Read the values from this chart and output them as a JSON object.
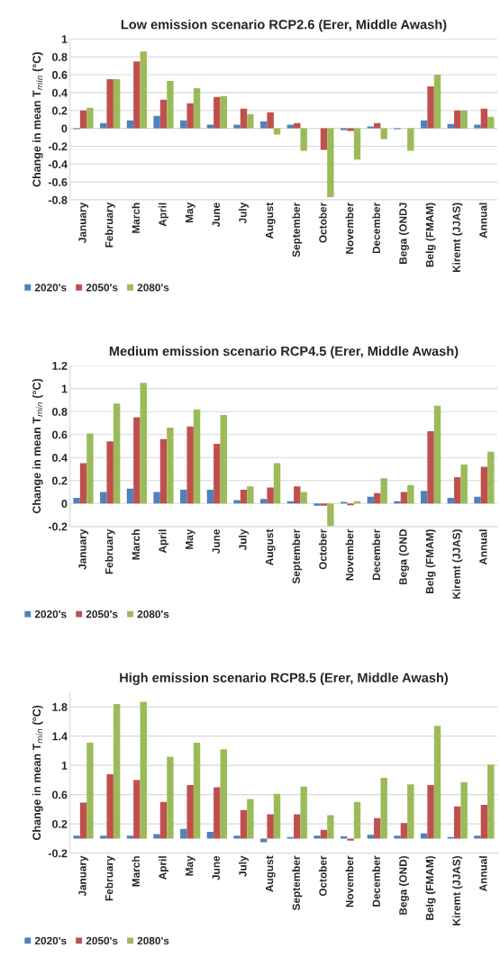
{
  "chart_data": [
    {
      "type": "bar",
      "title": "Low emission scenario RCP2.6 (Erer, Middle Awash)",
      "ylabel": "Change in mean T$_{min}$ (°C)",
      "categories": [
        "January",
        "February",
        "March",
        "April",
        "May",
        "June",
        "July",
        "August",
        "September",
        "October",
        "November",
        "December",
        "Bega (ONDJ",
        "Belg (FMAM)",
        "Kiremt (JJAS)",
        "Annual"
      ],
      "series": [
        {
          "name": "2020's",
          "color": "#4f81bd",
          "values": [
            -0.01,
            0.06,
            0.09,
            0.14,
            0.09,
            0.04,
            0.04,
            0.08,
            0.04,
            0,
            -0.02,
            0.02,
            -0.01,
            0.09,
            0.05,
            0.04
          ]
        },
        {
          "name": "2050's",
          "color": "#c0504d",
          "values": [
            0.2,
            0.55,
            0.75,
            0.32,
            0.28,
            0.35,
            0.22,
            0.18,
            0.06,
            -0.24,
            -0.03,
            0.06,
            0,
            0.47,
            0.2,
            0.22
          ]
        },
        {
          "name": "2080's",
          "color": "#9bbb59",
          "values": [
            0.23,
            0.55,
            0.86,
            0.53,
            0.45,
            0.36,
            0.16,
            -0.07,
            -0.25,
            -0.77,
            -0.35,
            -0.12,
            -0.25,
            0.6,
            0.2,
            0.13
          ]
        }
      ],
      "ylim": [
        -0.8,
        1
      ],
      "yticks": [
        -0.8,
        -0.6,
        -0.4,
        -0.2,
        0,
        0.2,
        0.4,
        0.6,
        0.8,
        1
      ],
      "grid": "y",
      "legend": "bottom"
    },
    {
      "type": "bar",
      "title": "Medium emission scenario RCP4.5 (Erer, Middle Awash)",
      "ylabel": "Change in mean T$_{min}$ (°C)",
      "categories": [
        "January",
        "February",
        "March",
        "April",
        "May",
        "June",
        "July",
        "August",
        "September",
        "October",
        "November",
        "December",
        "Bega (OND",
        "Belg (FMAM)",
        "Kiremt (JJAS)",
        "Annual"
      ],
      "series": [
        {
          "name": "2020's",
          "color": "#4f81bd",
          "values": [
            0.05,
            0.1,
            0.13,
            0.1,
            0.12,
            0.12,
            0.03,
            0.04,
            0.02,
            -0.02,
            0.015,
            0.06,
            0.02,
            0.11,
            0.05,
            0.06
          ]
        },
        {
          "name": "2050's",
          "color": "#c0504d",
          "values": [
            0.35,
            0.54,
            0.75,
            0.56,
            0.67,
            0.52,
            0.12,
            0.14,
            0.15,
            -0.02,
            -0.015,
            0.09,
            0.1,
            0.63,
            0.23,
            0.32
          ]
        },
        {
          "name": "2080's",
          "color": "#9bbb59",
          "values": [
            0.61,
            0.87,
            1.05,
            0.66,
            0.82,
            0.77,
            0.15,
            0.35,
            0.1,
            -0.2,
            0.02,
            0.22,
            0.16,
            0.85,
            0.34,
            0.45
          ]
        }
      ],
      "ylim": [
        -0.2,
        1.2
      ],
      "yticks": [
        -0.2,
        0,
        0.2,
        0.4,
        0.6,
        0.8,
        1,
        1.2
      ],
      "grid": "y",
      "legend": "bottom"
    },
    {
      "type": "bar",
      "title": "High emission scenario RCP8.5 (Erer, Middle Awash)",
      "ylabel": "Change in mean T$_{min}$ (°C)",
      "categories": [
        "January",
        "February",
        "March",
        "April",
        "May",
        "June",
        "July",
        "August",
        "September",
        "October",
        "November",
        "December",
        "Bega (OND)",
        "Belg (FMAM)",
        "Kiremt (JJAS)",
        "Annual"
      ],
      "series": [
        {
          "name": "2020's",
          "color": "#4f81bd",
          "values": [
            0.04,
            0.04,
            0.04,
            0.06,
            0.13,
            0.09,
            0.04,
            -0.05,
            0.02,
            0.04,
            0.03,
            0.05,
            0.04,
            0.07,
            0.02,
            0.04
          ]
        },
        {
          "name": "2050's",
          "color": "#c0504d",
          "values": [
            0.49,
            0.88,
            0.8,
            0.5,
            0.73,
            0.7,
            0.39,
            0.33,
            0.33,
            0.12,
            -0.03,
            0.28,
            0.21,
            0.73,
            0.44,
            0.46
          ]
        },
        {
          "name": "2080's",
          "color": "#9bbb59",
          "values": [
            1.31,
            1.84,
            1.87,
            1.12,
            1.31,
            1.22,
            0.54,
            0.61,
            0.71,
            0.32,
            0.5,
            0.83,
            0.74,
            1.54,
            0.77,
            1.01
          ]
        }
      ],
      "ylim": [
        -0.2,
        2.0
      ],
      "yticks": [
        -0.2,
        0.2,
        0.6,
        1,
        1.4,
        1.8
      ],
      "grid": "y",
      "legend": "bottom"
    }
  ]
}
